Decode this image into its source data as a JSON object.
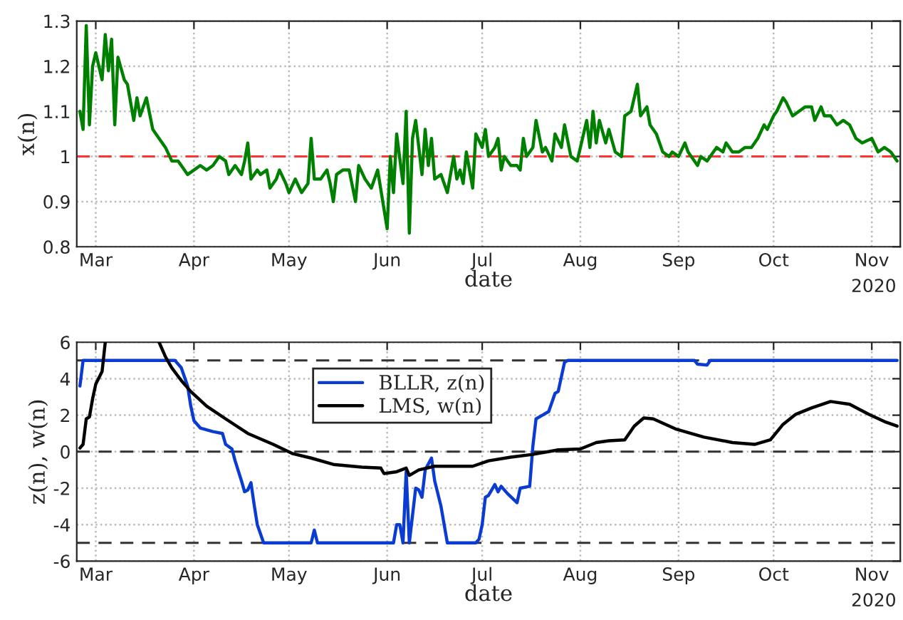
{
  "chart_data": [
    {
      "type": "line",
      "xlabel": "date",
      "ylabel": "x(n)",
      "xlim": [
        "2020-02-24",
        "2020-11-10"
      ],
      "ylim": [
        0.8,
        1.3
      ],
      "yticks": [
        0.8,
        0.9,
        1,
        1.1,
        1.2,
        1.3
      ],
      "xticks": [
        {
          "value": "2020-03-01",
          "label": "Mar"
        },
        {
          "value": "2020-04-01",
          "label": "Apr"
        },
        {
          "value": "2020-05-01",
          "label": "May"
        },
        {
          "value": "2020-06-01",
          "label": "Jun"
        },
        {
          "value": "2020-07-01",
          "label": "Jul"
        },
        {
          "value": "2020-08-01",
          "label": "Aug"
        },
        {
          "value": "2020-09-01",
          "label": "Sep"
        },
        {
          "value": "2020-10-01",
          "label": "Oct"
        },
        {
          "value": "2020-11-01",
          "label": "Nov"
        }
      ],
      "annotations": [
        "2020"
      ],
      "grid": true,
      "legend": false,
      "marker": "none",
      "line_style": "solid",
      "ref_lines": [
        {
          "axis": "y",
          "value": 1,
          "color": "#ff3333",
          "line_style": "dashed"
        }
      ],
      "series": [
        {
          "color": "#008000",
          "x": [
            "2020-02-25",
            "2020-02-26",
            "2020-02-27",
            "2020-02-28",
            "2020-02-29",
            "2020-03-01",
            "2020-03-03",
            "2020-03-04",
            "2020-03-05",
            "2020-03-06",
            "2020-03-07",
            "2020-03-08",
            "2020-03-10",
            "2020-03-11",
            "2020-03-12",
            "2020-03-13",
            "2020-03-14",
            "2020-03-15",
            "2020-03-17",
            "2020-03-19",
            "2020-03-20",
            "2020-03-23",
            "2020-03-25",
            "2020-03-27",
            "2020-03-28",
            "2020-03-30",
            "2020-04-01",
            "2020-04-03",
            "2020-04-05",
            "2020-04-07",
            "2020-04-09",
            "2020-04-11",
            "2020-04-12",
            "2020-04-14",
            "2020-04-16",
            "2020-04-17",
            "2020-04-18",
            "2020-04-19",
            "2020-04-21",
            "2020-04-22",
            "2020-04-24",
            "2020-04-25",
            "2020-04-27",
            "2020-04-28",
            "2020-04-30",
            "2020-05-01",
            "2020-05-03",
            "2020-05-05",
            "2020-05-07",
            "2020-05-08",
            "2020-05-09",
            "2020-05-11",
            "2020-05-13",
            "2020-05-14",
            "2020-05-15",
            "2020-05-16",
            "2020-05-18",
            "2020-05-20",
            "2020-05-22",
            "2020-05-23",
            "2020-05-25",
            "2020-05-27",
            "2020-05-29",
            "2020-06-01",
            "2020-06-02",
            "2020-06-03",
            "2020-06-04",
            "2020-06-06",
            "2020-06-07",
            "2020-06-08",
            "2020-06-09",
            "2020-06-10",
            "2020-06-12",
            "2020-06-13",
            "2020-06-14",
            "2020-06-15",
            "2020-06-16",
            "2020-06-18",
            "2020-06-20",
            "2020-06-22",
            "2020-06-23",
            "2020-06-24",
            "2020-06-25",
            "2020-06-26",
            "2020-06-28",
            "2020-06-29",
            "2020-07-01",
            "2020-07-02",
            "2020-07-03",
            "2020-07-05",
            "2020-07-06",
            "2020-07-07",
            "2020-07-08",
            "2020-07-10",
            "2020-07-12",
            "2020-07-13",
            "2020-07-14",
            "2020-07-15",
            "2020-07-17",
            "2020-07-18",
            "2020-07-20",
            "2020-07-21",
            "2020-07-23",
            "2020-07-24",
            "2020-07-26",
            "2020-07-27",
            "2020-07-29",
            "2020-07-31",
            "2020-08-01",
            "2020-08-03",
            "2020-08-04",
            "2020-08-05",
            "2020-08-06",
            "2020-08-07",
            "2020-08-09",
            "2020-08-10",
            "2020-08-12",
            "2020-08-14",
            "2020-08-15",
            "2020-08-17",
            "2020-08-19",
            "2020-08-20",
            "2020-08-22",
            "2020-08-23",
            "2020-08-25",
            "2020-08-27",
            "2020-08-29",
            "2020-08-30",
            "2020-09-01",
            "2020-09-03",
            "2020-09-04",
            "2020-09-07",
            "2020-09-08",
            "2020-09-10",
            "2020-09-11",
            "2020-09-13",
            "2020-09-15",
            "2020-09-16",
            "2020-09-18",
            "2020-09-20",
            "2020-09-22",
            "2020-09-24",
            "2020-09-26",
            "2020-09-28",
            "2020-09-29",
            "2020-10-01",
            "2020-10-02",
            "2020-10-04",
            "2020-10-05",
            "2020-10-07",
            "2020-10-09",
            "2020-10-11",
            "2020-10-13",
            "2020-10-14",
            "2020-10-16",
            "2020-10-17",
            "2020-10-19",
            "2020-10-21",
            "2020-10-23",
            "2020-10-25",
            "2020-10-27",
            "2020-10-29",
            "2020-11-01",
            "2020-11-03",
            "2020-11-05",
            "2020-11-07",
            "2020-11-09"
          ],
          "values": [
            1.1,
            1.06,
            1.29,
            1.07,
            1.2,
            1.23,
            1.17,
            1.27,
            1.19,
            1.26,
            1.07,
            1.22,
            1.17,
            1.16,
            1.12,
            1.08,
            1.13,
            1.09,
            1.13,
            1.06,
            1.05,
            1.02,
            0.99,
            0.99,
            0.98,
            0.96,
            0.97,
            0.98,
            0.97,
            0.98,
            1.0,
            0.99,
            0.96,
            0.98,
            0.96,
            0.99,
            1.03,
            0.95,
            0.97,
            0.96,
            0.97,
            0.93,
            0.95,
            0.97,
            0.94,
            0.92,
            0.95,
            0.92,
            0.94,
            1.04,
            0.95,
            0.95,
            0.97,
            0.94,
            0.9,
            0.96,
            0.97,
            0.97,
            0.9,
            0.98,
            0.95,
            0.93,
            0.97,
            0.84,
            1.0,
            0.92,
            1.05,
            0.94,
            1.1,
            0.83,
            1.04,
            1.08,
            0.96,
            1.06,
            0.98,
            1.04,
            0.95,
            0.96,
            0.92,
            1.0,
            0.95,
            0.97,
            0.94,
            1.01,
            0.93,
            1.05,
            1.02,
            1.06,
            1.0,
            1.02,
            1.04,
            0.97,
            1.0,
            0.98,
            0.98,
            0.97,
            1.04,
            1.0,
            1.02,
            1.08,
            1.01,
            1.02,
            0.99,
            1.05,
            1.02,
            1.07,
            1.0,
            0.99,
            1.02,
            1.08,
            1.02,
            1.1,
            1.03,
            1.08,
            1.03,
            1.06,
            1.01,
            1.0,
            1.09,
            1.1,
            1.16,
            1.09,
            1.11,
            1.07,
            1.05,
            1.01,
            1.0,
            1.01,
            1.0,
            1.03,
            1.01,
            0.98,
            1.0,
            0.99,
            1.0,
            1.02,
            1.01,
            1.03,
            1.01,
            1.01,
            1.02,
            1.02,
            1.04,
            1.07,
            1.06,
            1.09,
            1.1,
            1.13,
            1.12,
            1.09,
            1.1,
            1.11,
            1.11,
            1.08,
            1.11,
            1.09,
            1.09,
            1.07,
            1.08,
            1.07,
            1.04,
            1.03,
            1.04,
            1.01,
            1.02,
            1.01,
            0.99
          ]
        }
      ]
    },
    {
      "type": "line",
      "xlabel": "date",
      "ylabel": "z(n), w(n)",
      "xlim": [
        "2020-02-24",
        "2020-11-10"
      ],
      "ylim": [
        -6,
        6
      ],
      "yticks": [
        -6,
        -4,
        -2,
        0,
        2,
        4,
        6
      ],
      "xticks": [
        {
          "value": "2020-03-01",
          "label": "Mar"
        },
        {
          "value": "2020-04-01",
          "label": "Apr"
        },
        {
          "value": "2020-05-01",
          "label": "May"
        },
        {
          "value": "2020-06-01",
          "label": "Jun"
        },
        {
          "value": "2020-07-01",
          "label": "Jul"
        },
        {
          "value": "2020-08-01",
          "label": "Aug"
        },
        {
          "value": "2020-09-01",
          "label": "Sep"
        },
        {
          "value": "2020-10-01",
          "label": "Oct"
        },
        {
          "value": "2020-11-01",
          "label": "Nov"
        }
      ],
      "annotations": [
        "2020"
      ],
      "grid": true,
      "legend": "top",
      "marker": "none",
      "line_style": "solid",
      "ref_lines": [
        {
          "axis": "y",
          "value": 5,
          "color": "#333333",
          "line_style": "dashed"
        },
        {
          "axis": "y",
          "value": 0,
          "color": "#333333",
          "line_style": "dashed"
        },
        {
          "axis": "y",
          "value": -5,
          "color": "#333333",
          "line_style": "dashed"
        }
      ],
      "series": [
        {
          "name": "BLLR, z(n)",
          "color": "#0a3cd2",
          "x": [
            "2020-02-25",
            "2020-02-26",
            "2020-03-26",
            "2020-03-28",
            "2020-03-30",
            "2020-03-31",
            "2020-04-01",
            "2020-04-03",
            "2020-04-07",
            "2020-04-10",
            "2020-04-11",
            "2020-04-13",
            "2020-04-14",
            "2020-04-16",
            "2020-04-17",
            "2020-04-18",
            "2020-04-19",
            "2020-04-20",
            "2020-04-21",
            "2020-04-23",
            "2020-05-08",
            "2020-05-09",
            "2020-05-10",
            "2020-06-03",
            "2020-06-04",
            "2020-06-05",
            "2020-06-06",
            "2020-06-07",
            "2020-06-08",
            "2020-06-10",
            "2020-06-11",
            "2020-06-12",
            "2020-06-13",
            "2020-06-15",
            "2020-06-16",
            "2020-06-18",
            "2020-06-20",
            "2020-06-29",
            "2020-06-30",
            "2020-07-01",
            "2020-07-02",
            "2020-07-03",
            "2020-07-05",
            "2020-07-06",
            "2020-07-07",
            "2020-07-09",
            "2020-07-12",
            "2020-07-13",
            "2020-07-16",
            "2020-07-17",
            "2020-07-18",
            "2020-07-20",
            "2020-07-22",
            "2020-07-24",
            "2020-07-25",
            "2020-07-27",
            "2020-07-28",
            "2020-09-06",
            "2020-09-07",
            "2020-09-10",
            "2020-09-11",
            "2020-11-09"
          ],
          "values": [
            3.6,
            5,
            5,
            4.6,
            3.6,
            2.5,
            1.7,
            1.3,
            1.1,
            1.0,
            0.4,
            0.15,
            -0.5,
            -1.6,
            -2.2,
            -2.1,
            -1.7,
            -2.9,
            -4.0,
            -5,
            -5,
            -4.3,
            -5,
            -5,
            -4.0,
            -4.0,
            -5,
            -1.1,
            -5,
            -2.0,
            -2.1,
            -2.5,
            -1.0,
            -0.35,
            -1.6,
            -3.0,
            -5,
            -5,
            -4.8,
            -4.0,
            -2.5,
            -2.4,
            -1.8,
            -2.2,
            -1.9,
            -2.3,
            -2.8,
            -2.0,
            -1.9,
            0.3,
            1.8,
            2.0,
            2.2,
            3.2,
            3.3,
            4.9,
            5,
            5,
            4.8,
            4.75,
            5,
            5
          ]
        },
        {
          "name": "LMS, w(n)",
          "color": "#000000",
          "x": [
            "2020-02-25",
            "2020-02-26",
            "2020-02-27",
            "2020-02-28",
            "2020-02-29",
            "2020-03-01",
            "2020-03-03",
            "2020-03-04",
            "2020-03-10",
            "2020-03-21",
            "2020-03-23",
            "2020-03-25",
            "2020-03-28",
            "2020-03-31",
            "2020-04-05",
            "2020-04-11",
            "2020-04-18",
            "2020-04-26",
            "2020-05-02",
            "2020-05-08",
            "2020-05-15",
            "2020-05-24",
            "2020-05-30",
            "2020-05-31",
            "2020-06-04",
            "2020-06-07",
            "2020-06-08",
            "2020-06-11",
            "2020-06-16",
            "2020-06-22",
            "2020-06-28",
            "2020-07-03",
            "2020-07-10",
            "2020-07-17",
            "2020-07-25",
            "2020-08-01",
            "2020-08-06",
            "2020-08-10",
            "2020-08-15",
            "2020-08-18",
            "2020-08-21",
            "2020-08-24",
            "2020-08-31",
            "2020-09-09",
            "2020-09-18",
            "2020-09-25",
            "2020-09-30",
            "2020-10-04",
            "2020-10-08",
            "2020-10-13",
            "2020-10-19",
            "2020-10-25",
            "2020-10-31",
            "2020-11-05",
            "2020-11-09"
          ],
          "values": [
            0.2,
            0.4,
            1.8,
            1.9,
            2.9,
            3.7,
            4.4,
            6,
            null,
            6,
            5.2,
            4.6,
            3.9,
            3.3,
            2.5,
            1.8,
            1.0,
            0.4,
            -0.1,
            -0.35,
            -0.7,
            -0.85,
            -0.9,
            -1.2,
            -1.1,
            -0.9,
            -1.3,
            -1.0,
            -0.8,
            -0.8,
            -0.8,
            -0.5,
            -0.3,
            -0.15,
            0.1,
            0.15,
            0.5,
            0.6,
            0.65,
            1.4,
            1.85,
            1.8,
            1.25,
            0.8,
            0.5,
            0.4,
            0.65,
            1.5,
            2.05,
            2.4,
            2.75,
            2.6,
            2.05,
            1.65,
            1.4
          ]
        }
      ]
    }
  ]
}
